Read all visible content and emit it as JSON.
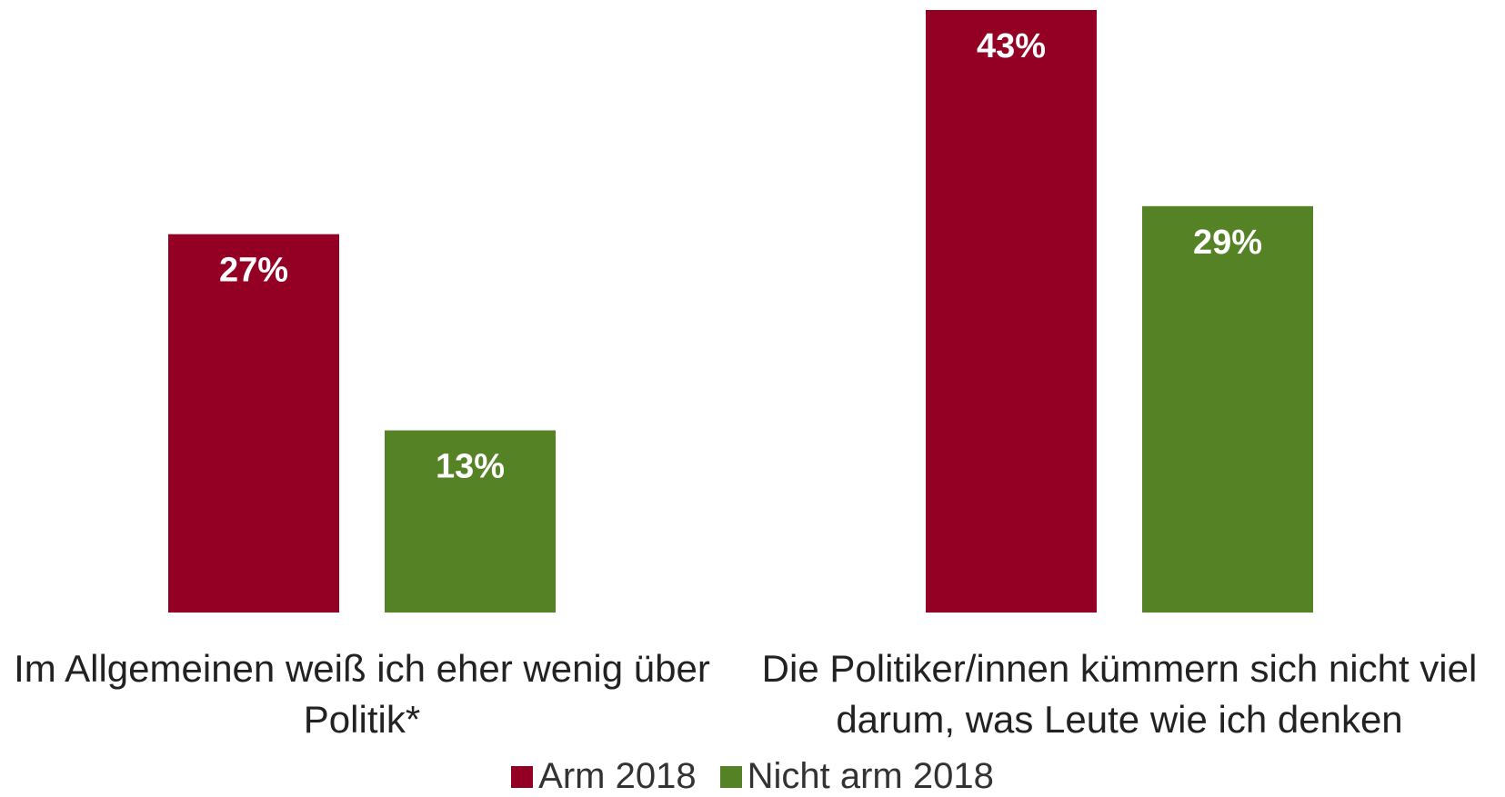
{
  "chart_data": {
    "type": "bar",
    "categories": [
      "Im Allgemeinen weiß ich eher wenig über Politik*",
      "Die Politiker/innen kümmern sich nicht viel darum, was Leute wie ich denken"
    ],
    "series": [
      {
        "name": "Arm 2018",
        "color": "#930024",
        "values": [
          27,
          43
        ],
        "value_labels": [
          "27%",
          "43%"
        ]
      },
      {
        "name": "Nicht arm 2018",
        "color": "#558224",
        "values": [
          13,
          29
        ],
        "value_labels": [
          "13%",
          "29%"
        ]
      }
    ]
  }
}
